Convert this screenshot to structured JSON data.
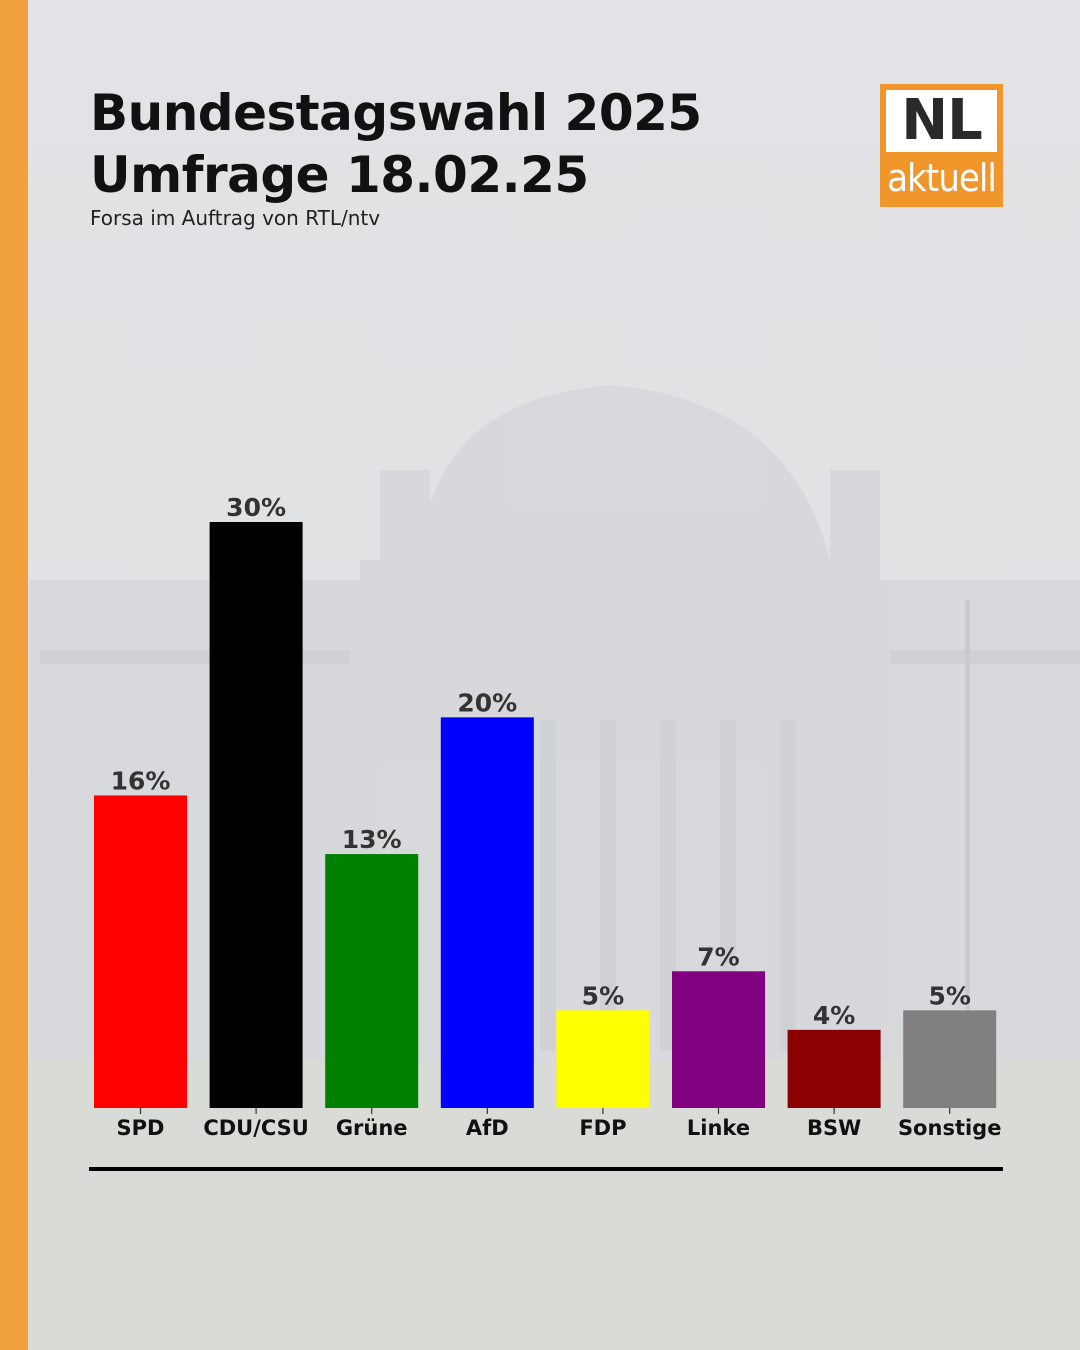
{
  "header": {
    "title_line1": "Bundestagswahl 2025",
    "title_line2": "Umfrage 18.02.25",
    "subtitle": "Forsa im Auftrag von RTL/ntv"
  },
  "logo": {
    "top_text": "NL",
    "bottom_text": "aktuell",
    "color": "#f0962a"
  },
  "accent_color": "#f0a03c",
  "chart_data": {
    "type": "bar",
    "categories": [
      "SPD",
      "CDU/CSU",
      "Grüne",
      "AfD",
      "FDP",
      "Linke",
      "BSW",
      "Sonstige"
    ],
    "values": [
      16,
      30,
      13,
      20,
      5,
      7,
      4,
      5
    ],
    "data_labels": [
      "16%",
      "30%",
      "13%",
      "20%",
      "5%",
      "7%",
      "4%",
      "5%"
    ],
    "colors": [
      "#ff0000",
      "#000000",
      "#008000",
      "#0000ff",
      "#ffff00",
      "#800080",
      "#8b0000",
      "#808080"
    ],
    "unit": "%",
    "ylim": [
      0,
      30
    ],
    "grid": false,
    "legend": "none"
  }
}
